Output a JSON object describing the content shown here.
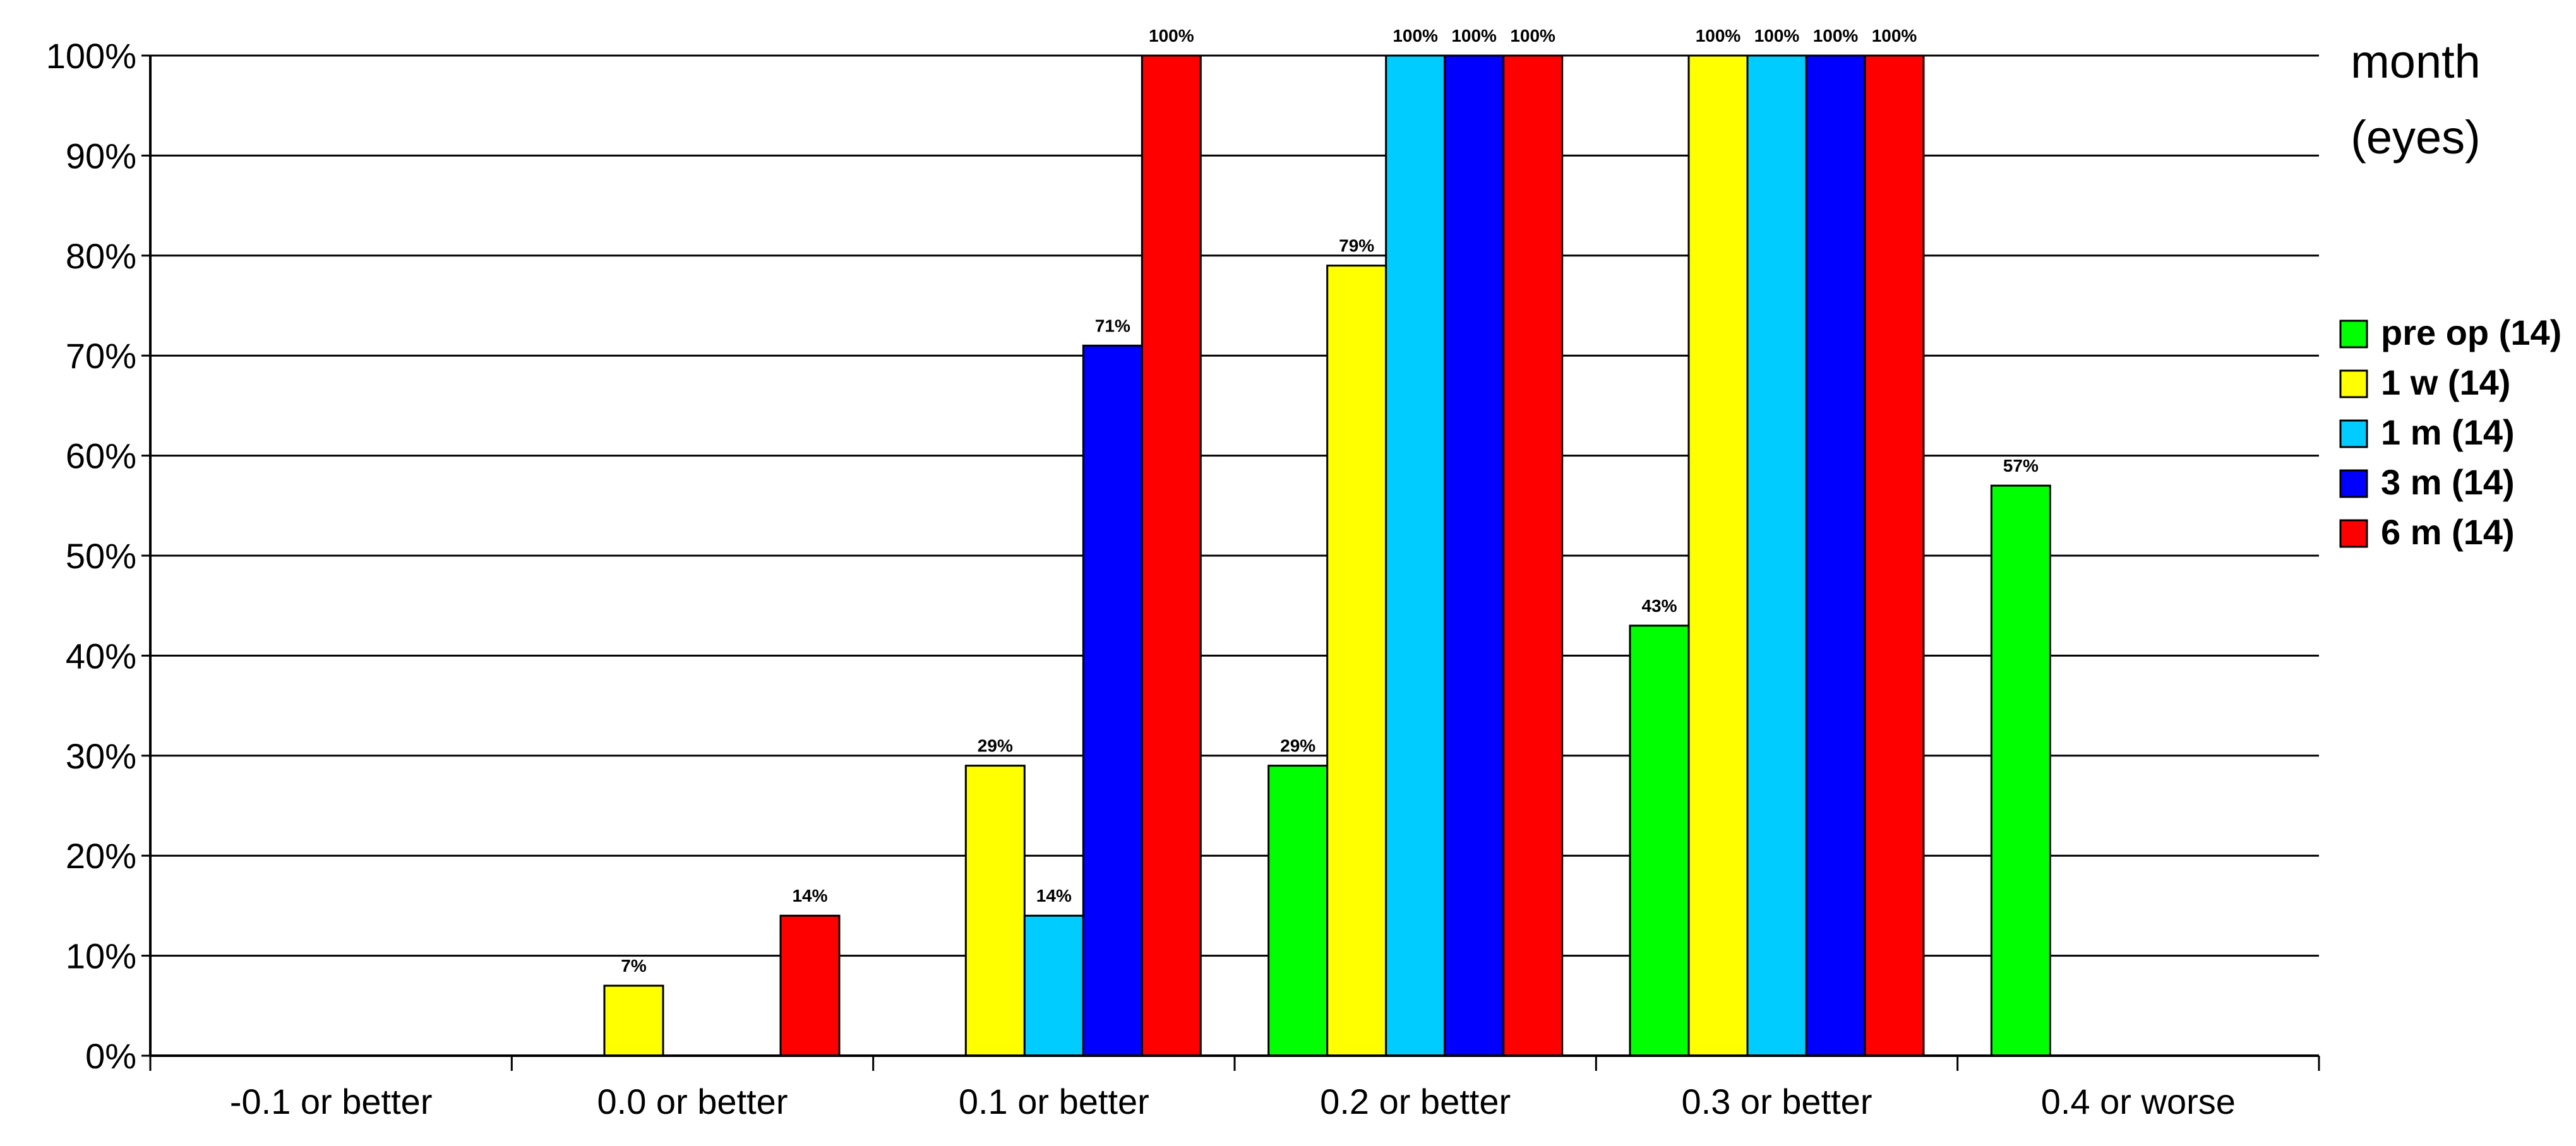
{
  "chart_data": {
    "type": "bar",
    "categories": [
      "-0.1 or better",
      "0.0 or better",
      "0.1 or better",
      "0.2 or better",
      "0.3 or better",
      "0.4 or worse"
    ],
    "series": [
      {
        "name": "pre op (14)",
        "color": "#00FF00",
        "values": [
          0,
          0,
          0,
          29,
          43,
          57
        ]
      },
      {
        "name": "1 w (14)",
        "color": "#FFFF00",
        "values": [
          0,
          7,
          29,
          79,
          100,
          0
        ]
      },
      {
        "name": "1 m (14)",
        "color": "#00CCFF",
        "values": [
          0,
          0,
          14,
          100,
          100,
          0
        ]
      },
      {
        "name": "3 m (14)",
        "color": "#0000FF",
        "values": [
          0,
          0,
          71,
          100,
          100,
          0
        ]
      },
      {
        "name": "6 m (14)",
        "color": "#FF0000",
        "values": [
          0,
          14,
          100,
          100,
          100,
          0
        ]
      }
    ],
    "data_labels": [
      [
        null,
        null,
        null,
        "29%",
        "43%",
        "57%"
      ],
      [
        null,
        "7%",
        "29%",
        "79%",
        "100%",
        null
      ],
      [
        null,
        null,
        "14%",
        "100%",
        "100%",
        null
      ],
      [
        null,
        null,
        "71%",
        "100%",
        "100%",
        null
      ],
      [
        null,
        "14%",
        "100%",
        "100%",
        "100%",
        null
      ]
    ],
    "yticks": [
      "0%",
      "10%",
      "20%",
      "30%",
      "40%",
      "50%",
      "60%",
      "70%",
      "80%",
      "90%",
      "100%"
    ],
    "ylim": [
      0,
      100
    ],
    "grid": true,
    "legend": {
      "title_lines": [
        "month",
        "(eyes)"
      ],
      "position": "right"
    }
  }
}
